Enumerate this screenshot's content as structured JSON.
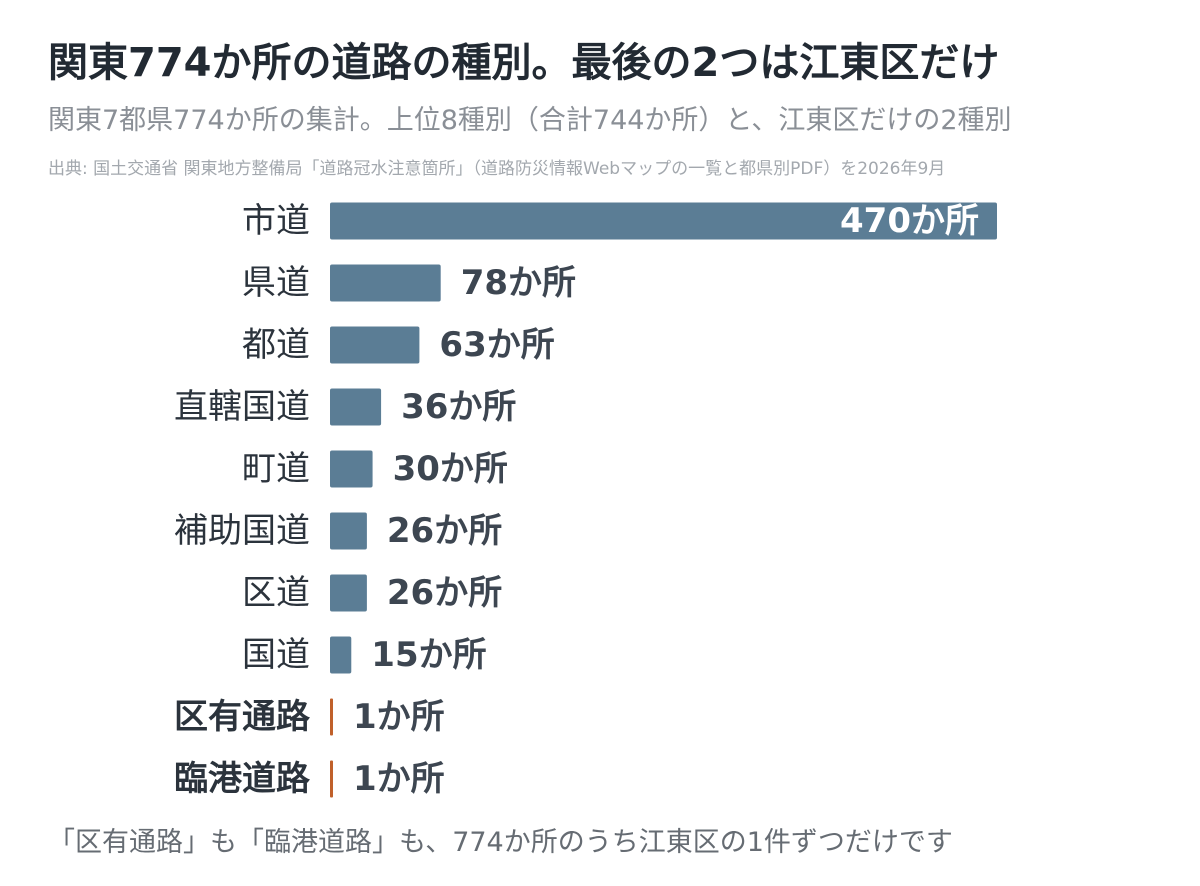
{
  "title": "関東774か所の道路の種別。最後の2つは江東区だけ",
  "subtitle": "関東7都県774か所の集計。上位8種別（合計744か所）と、江東区だけの2種別",
  "source": "出典: 国土交通省 関東地方整備局「道路冠水注意箇所」（道路防災情報Webマップの一覧と都県別PDF）を2026年9月",
  "note": "「区有通路」も「臨港道路」も、774か所のうち江東区の1件ずつだけです",
  "colors": {
    "main": "#5b7d95",
    "highlight": "#c0602a",
    "label": "#2b333c",
    "value": "#3d4651",
    "value_inside": "#ffffff"
  },
  "chart_data": {
    "type": "bar",
    "orientation": "horizontal",
    "unit": "か所",
    "categories": [
      "市道",
      "県道",
      "都道",
      "直轄国道",
      "町道",
      "補助国道",
      "区道",
      "国道",
      "区有通路",
      "臨港道路"
    ],
    "values": [
      470,
      78,
      63,
      36,
      30,
      26,
      26,
      15,
      1,
      1
    ],
    "value_labels": [
      "470か所",
      "78か所",
      "63か所",
      "36か所",
      "30か所",
      "26か所",
      "26か所",
      "15か所",
      "1か所",
      "1か所"
    ],
    "highlighted": [
      "区有通路",
      "臨港道路"
    ],
    "xlim": [
      0,
      470
    ],
    "grid": false,
    "legend": "none"
  }
}
